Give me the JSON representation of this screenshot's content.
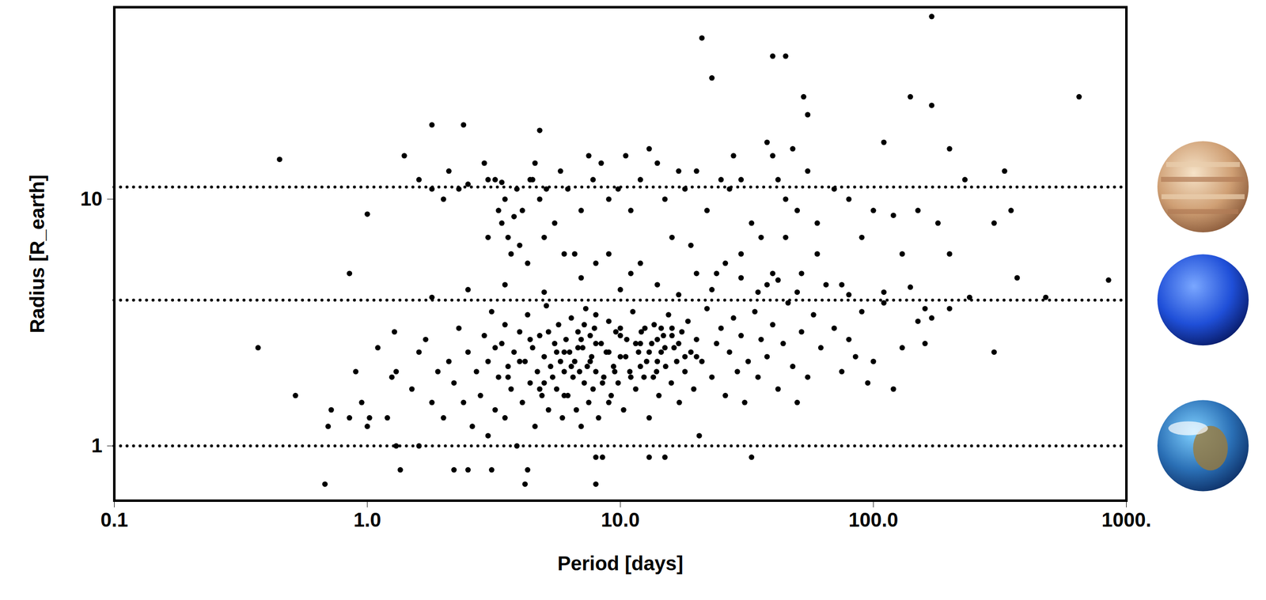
{
  "chart_data": {
    "type": "scatter",
    "x_label": "Period [days]",
    "y_label": "Radius [R_earth]",
    "log": true,
    "color": "#000000",
    "marker": "circle",
    "xlim": [
      0.1,
      1000
    ],
    "xticks": [
      0.1,
      {
        "value": 1,
        "label": "1.0"
      },
      {
        "value": 10,
        "label": "10.0"
      },
      {
        "value": 100,
        "label": "100.0"
      },
      {
        "value": 1000,
        "label": "1000."
      }
    ],
    "ylim": [
      0.6,
      60
    ],
    "yticks": [
      1,
      10
    ],
    "reference_lines": [
      1,
      3.9,
      11.2
    ],
    "x": [
      0.45,
      0.37,
      0.52,
      0.68,
      0.7,
      0.72,
      0.85,
      0.85,
      0.9,
      0.95,
      1.0,
      1.02,
      1.0,
      1.25,
      1.28,
      1.3,
      1.35,
      1.4,
      1.6,
      1.8,
      2.4,
      4.8,
      21,
      23,
      40,
      45,
      28,
      40,
      53,
      55,
      48,
      110,
      140,
      170,
      170,
      200,
      330,
      650,
      850,
      370,
      300,
      160,
      120,
      95,
      33,
      4.2,
      8,
      2.2,
      2.5,
      3.1,
      4.3,
      8,
      13,
      15,
      8.5,
      1.6,
      1.8,
      2.0,
      2.1,
      2.3,
      2.5,
      2.9,
      3.0,
      3.2,
      3.3,
      3.4,
      3.5,
      3.6,
      3.8,
      3.9,
      4.0,
      4.1,
      4.4,
      4.6,
      4.8,
      5.1,
      5.5,
      5.8,
      6.2,
      6.6,
      7.0,
      7.5,
      7.8,
      8.4,
      9.0,
      9.8,
      10.5,
      11,
      12,
      13,
      14,
      15,
      17,
      18,
      20,
      22,
      25,
      27,
      30,
      33,
      36,
      38,
      42,
      45,
      50,
      55,
      60,
      70,
      80,
      100,
      130,
      150,
      200,
      230,
      350,
      3.0,
      3.7,
      4.3,
      5,
      6,
      9,
      12,
      16,
      19,
      24,
      30,
      40,
      45,
      60,
      75,
      90,
      120,
      180,
      300,
      4.5,
      3.4,
      1.8,
      2.5,
      3.5,
      5,
      7,
      8,
      10,
      11,
      14,
      17,
      20,
      23,
      26,
      30,
      35,
      38,
      42,
      50,
      52,
      65,
      80,
      110,
      140,
      160,
      170,
      240,
      480,
      1.5,
      1.6,
      1.7,
      1.8,
      1.9,
      2.0,
      2.1,
      2.2,
      2.3,
      2.4,
      2.5,
      2.6,
      2.7,
      2.8,
      2.9,
      3.0,
      3.0,
      3.1,
      3.2,
      3.3,
      3.4,
      3.5,
      3.5,
      3.6,
      3.7,
      3.8,
      3.9,
      4.0,
      4.1,
      4.2,
      4.3,
      4.4,
      4.5,
      4.6,
      4.7,
      4.8,
      4.9,
      5.0,
      5.1,
      5.2,
      5.3,
      5.4,
      5.5,
      5.6,
      5.7,
      5.8,
      5.9,
      6.0,
      6.1,
      6.2,
      6.3,
      6.4,
      6.5,
      6.6,
      6.7,
      6.8,
      6.9,
      7.0,
      7.1,
      7.2,
      7.3,
      7.4,
      7.5,
      7.6,
      7.7,
      7.8,
      7.9,
      8.0,
      8.2,
      8.4,
      8.6,
      8.8,
      9.0,
      9.2,
      9.4,
      9.6,
      9.8,
      10.0,
      10.3,
      10.6,
      10.9,
      11.2,
      11.5,
      11.8,
      12.1,
      12.4,
      12.7,
      13.0,
      13.3,
      13.6,
      13.9,
      14.2,
      14.5,
      14.8,
      15.1,
      15.5,
      15.9,
      16.3,
      16.7,
      17.1,
      17.5,
      18.0,
      18.5,
      19.0,
      19.5,
      20.0,
      20.5,
      21,
      22,
      23,
      24,
      25,
      26,
      27,
      28,
      29,
      30,
      31,
      32,
      34,
      35,
      36,
      38,
      40,
      42,
      44,
      46,
      48,
      50,
      52,
      55,
      58,
      62,
      70,
      75,
      80,
      85,
      90,
      100,
      110,
      130,
      150,
      200,
      1.2,
      1.1,
      1.3,
      3.2,
      3.6,
      4.0,
      4.4,
      4.8,
      5.2,
      5.6,
      6.0,
      6.4,
      6.8,
      7.2,
      7.6,
      8.0,
      8.5,
      9.0,
      9.5,
      10.0,
      10.5,
      11.0,
      11.5,
      12.0,
      12.5,
      13.0,
      13.5,
      14.0,
      14.5,
      15.0,
      16.0,
      17.0,
      18.0,
      5.0,
      6.0,
      7.0,
      8.0,
      9.0,
      10.0,
      12.0,
      14.0,
      16.0,
      20.0
    ],
    "values": [
      14.5,
      2.5,
      1.6,
      0.7,
      1.2,
      1.4,
      1.3,
      5,
      2,
      1.5,
      1.2,
      1.3,
      8.7,
      1.9,
      2.9,
      2,
      0.8,
      15,
      1.0,
      20,
      20,
      19,
      45,
      31,
      38,
      38,
      15,
      15,
      26,
      22,
      16,
      17,
      26,
      24,
      55,
      16,
      13,
      26,
      4.7,
      4.8,
      2.4,
      2.6,
      1.7,
      1.8,
      0.9,
      0.7,
      0.7,
      0.8,
      0.8,
      0.8,
      0.8,
      0.9,
      0.9,
      0.9,
      0.9,
      12,
      11,
      10,
      13,
      11,
      11.5,
      14,
      12,
      12,
      9,
      8,
      10,
      7,
      8.5,
      11,
      6.5,
      9,
      12,
      14,
      10,
      11,
      8,
      13,
      11,
      6,
      9,
      15,
      12,
      14,
      10,
      11,
      15,
      9,
      12,
      16,
      14,
      10,
      13,
      11,
      13,
      9,
      12,
      11,
      12,
      8,
      7,
      17,
      12,
      10,
      9,
      13,
      8,
      11,
      10,
      9,
      6,
      9,
      6,
      12,
      9,
      7,
      6,
      5.5,
      7,
      6,
      6,
      5.5,
      7,
      6.5,
      5,
      6,
      5,
      7,
      6,
      4.5,
      7,
      8.6,
      8,
      8,
      12,
      11.7,
      4,
      4.3,
      4.5,
      4.2,
      4.8,
      5.5,
      4.3,
      5,
      4.5,
      4.1,
      5,
      4.3,
      5.5,
      4.8,
      4.2,
      4.5,
      4.7,
      4.2,
      5,
      4.5,
      4.1,
      4.2,
      4.4,
      3.6,
      3.3,
      4.0,
      4.0,
      1.7,
      2.4,
      2.7,
      1.5,
      2.0,
      1.3,
      2.2,
      1.8,
      3.0,
      1.5,
      2.4,
      1.2,
      2.0,
      1.6,
      2.8,
      1.1,
      2.2,
      3.5,
      1.4,
      1.9,
      2.6,
      1.3,
      3.1,
      2.1,
      1.7,
      2.4,
      1.0,
      2.9,
      1.5,
      2.2,
      3.4,
      1.8,
      2.5,
      1.2,
      2.0,
      2.8,
      1.6,
      2.3,
      3.7,
      1.4,
      2.1,
      1.9,
      2.6,
      1.7,
      3.1,
      2.2,
      1.3,
      2.0,
      2.7,
      1.6,
      2.4,
      3.3,
      1.9,
      2.2,
      1.4,
      2.9,
      2.0,
      1.2,
      2.5,
      1.8,
      3.6,
      2.1,
      1.5,
      2.8,
      2.3,
      1.7,
      3.0,
      2.0,
      1.3,
      2.6,
      1.9,
      2.4,
      3.2,
      1.6,
      2.1,
      2.9,
      1.8,
      2.3,
      1.4,
      2.7,
      2.0,
      3.5,
      1.7,
      2.4,
      2.9,
      1.9,
      2.2,
      1.3,
      2.6,
      3.1,
      2.0,
      1.6,
      2.4,
      2.8,
      2.1,
      3.4,
      1.8,
      2.5,
      2.2,
      1.5,
      2.9,
      2.0,
      3.2,
      2.4,
      1.7,
      2.7,
      1.1,
      2.2,
      3.6,
      1.9,
      2.6,
      3.0,
      1.6,
      2.4,
      3.3,
      2.0,
      2.8,
      1.5,
      2.2,
      3.5,
      1.9,
      2.7,
      2.3,
      3.1,
      1.7,
      2.6,
      3.8,
      2.1,
      1.5,
      2.9,
      1.9,
      3.4,
      2.5,
      3.0,
      2.0,
      2.7,
      2.3,
      3.5,
      2.2,
      3.8,
      2.5,
      3.2,
      3.6,
      1.3,
      2.5,
      1.0,
      2.5,
      1.9,
      2.2,
      2.7,
      1.7,
      2.9,
      2.4,
      1.6,
      2.1,
      2.5,
      3.1,
      2.2,
      2.6,
      1.8,
      2.4,
      2.0,
      2.8,
      2.3,
      1.9,
      2.6,
      2.1,
      3.0,
      2.4,
      1.9,
      2.7,
      3.0,
      2.5,
      2.8,
      2.6,
      2.3,
      1.8,
      2.4,
      2.7,
      3.4,
      1.5,
      3.0,
      2.6,
      2.2,
      3.0,
      2.3
    ]
  }
}
